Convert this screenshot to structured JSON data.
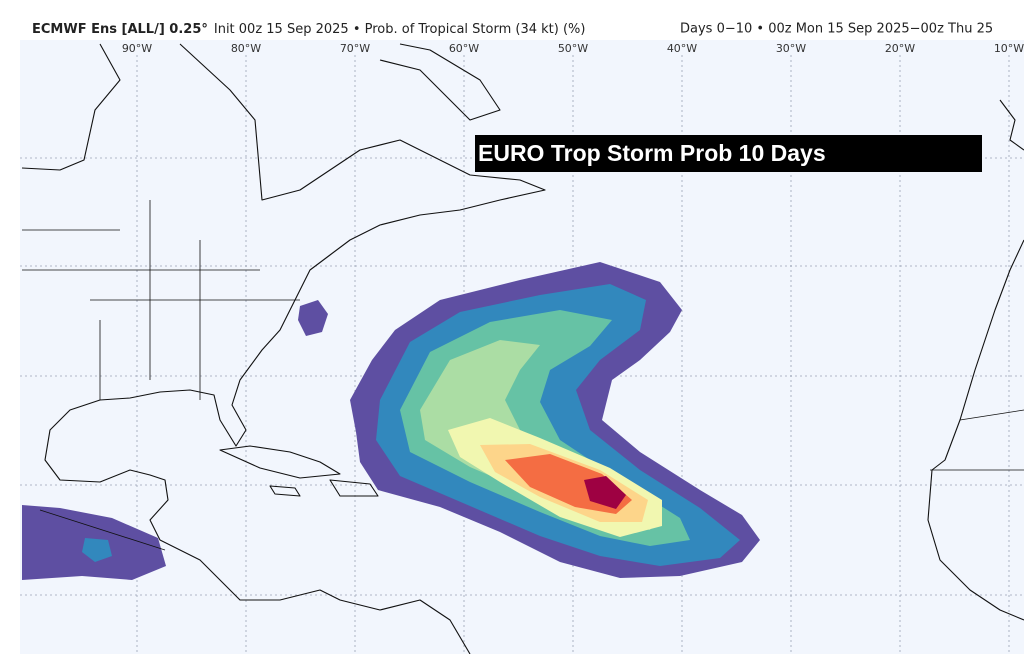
{
  "header": {
    "model": "ECMWF Ens [ALL/] 0.25°",
    "description": "Init 00z 15 Sep 2025 • Prob. of Tropical Storm (34 kt) (%)",
    "valid": "Days 0−10 • 00z Mon 15 Sep 2025−00z Thu 25"
  },
  "map": {
    "longitude_labels": [
      "90°W",
      "80°W",
      "70°W",
      "60°W",
      "50°W",
      "40°W",
      "30°W",
      "20°W",
      "10°W"
    ],
    "overlay_title": "EURO Trop Storm Prob 10 Days"
  }
}
